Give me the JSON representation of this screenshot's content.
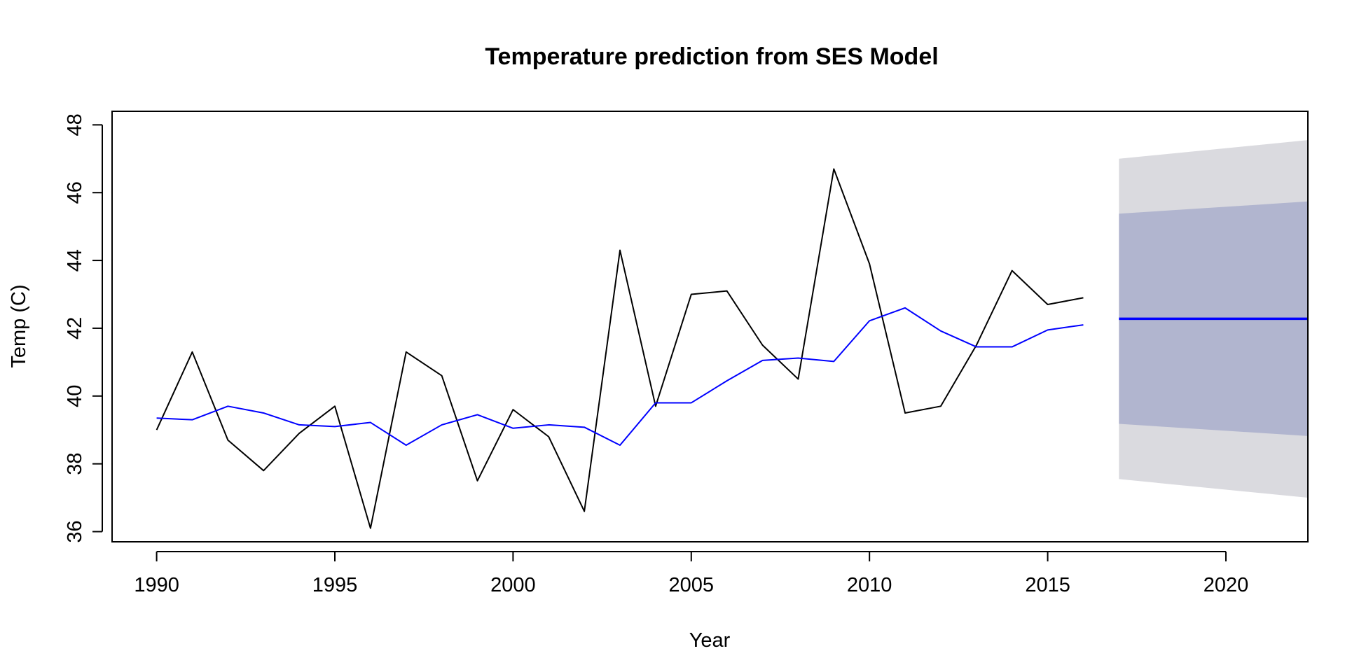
{
  "chart_data": {
    "type": "line",
    "title": "Temperature prediction from SES Model",
    "xlabel": "Year",
    "ylabel": "Temp (C)",
    "xlim": [
      1988.75,
      2022.3
    ],
    "ylim": [
      35.7,
      48.4
    ],
    "x_ticks": [
      1990,
      1995,
      2000,
      2005,
      2010,
      2015,
      2020
    ],
    "y_ticks": [
      36,
      38,
      40,
      42,
      44,
      46,
      48
    ],
    "grid": false,
    "legend": "none",
    "series": [
      {
        "color": "#000000",
        "x": [
          1990,
          1991,
          1992,
          1993,
          1994,
          1995,
          1996,
          1997,
          1998,
          1999,
          2000,
          2001,
          2002,
          2003,
          2004,
          2005,
          2006,
          2007,
          2008,
          2009,
          2010,
          2011,
          2012,
          2013,
          2014,
          2015,
          2016
        ],
        "values": [
          39.0,
          41.3,
          38.7,
          37.8,
          38.9,
          39.7,
          36.1,
          41.3,
          40.6,
          37.5,
          39.6,
          38.8,
          36.6,
          44.3,
          39.7,
          43.0,
          43.1,
          41.5,
          40.5,
          46.7,
          43.9,
          39.5,
          39.7,
          41.5,
          43.7,
          42.7,
          42.9
        ]
      },
      {
        "color": "#0000ff",
        "x": [
          1990,
          1991,
          1992,
          1993,
          1994,
          1995,
          1996,
          1997,
          1998,
          1999,
          2000,
          2001,
          2002,
          2003,
          2004,
          2005,
          2006,
          2007,
          2008,
          2009,
          2010,
          2011,
          2012,
          2013,
          2014,
          2015,
          2016
        ],
        "values": [
          39.35,
          39.3,
          39.7,
          39.5,
          39.15,
          39.1,
          39.22,
          38.55,
          39.15,
          39.45,
          39.05,
          39.15,
          39.08,
          38.55,
          39.8,
          39.8,
          40.45,
          41.05,
          41.12,
          41.02,
          42.22,
          42.6,
          41.92,
          41.45,
          41.45,
          41.95,
          42.1
        ]
      }
    ],
    "forecast": {
      "x_start": 2017,
      "x_end": 2022.3,
      "point": 42.28,
      "point_color": "#0000ff",
      "band_80": {
        "lower": [
          39.18,
          38.82
        ],
        "upper": [
          45.38,
          45.74
        ],
        "color": "#b1b5cf"
      },
      "band_95": {
        "lower": [
          37.55,
          37.0
        ],
        "upper": [
          47.0,
          47.55
        ],
        "color": "#dadadf"
      }
    }
  }
}
